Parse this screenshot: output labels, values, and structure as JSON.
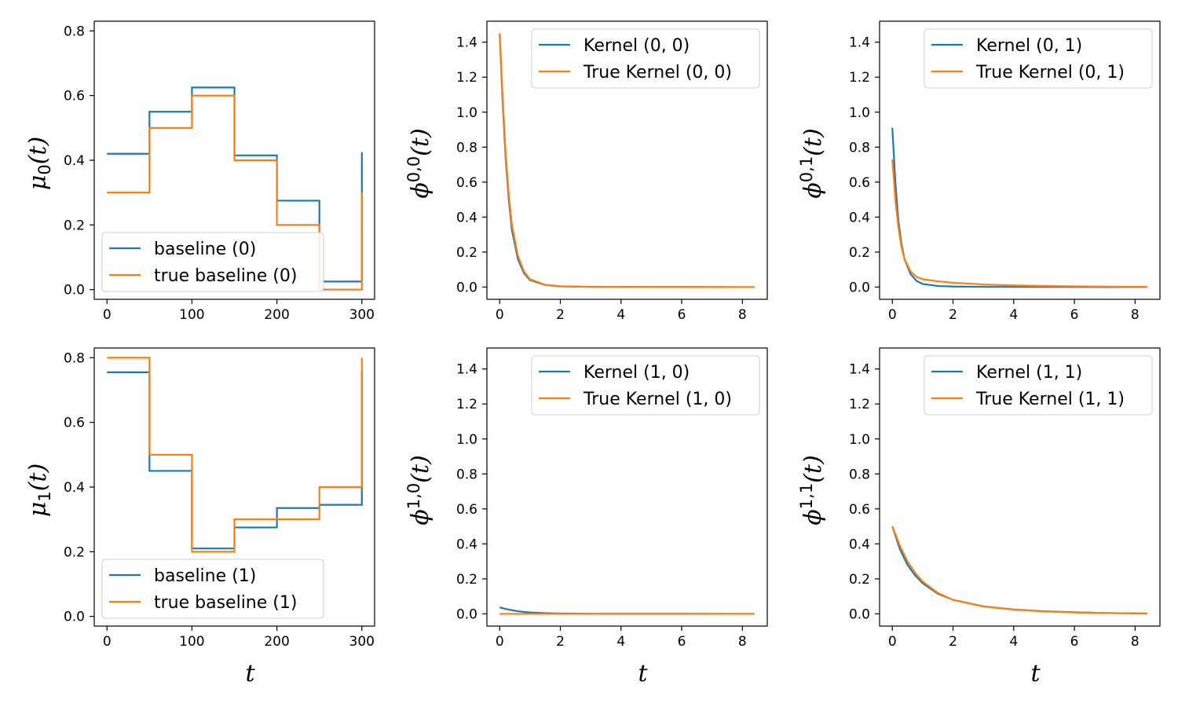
{
  "colors": {
    "estimate": "#1f77b4",
    "truth": "#ff7f0e"
  },
  "chart_data": [
    {
      "type": "line",
      "id": "mu0",
      "ylabel": "μ0(t)",
      "xlabel": "",
      "xlim": [
        -15,
        315
      ],
      "ylim": [
        -0.03,
        0.83
      ],
      "xticks": [
        0,
        100,
        200,
        300
      ],
      "xtick_labels": [
        "0",
        "100",
        "200",
        "300"
      ],
      "yticks": [
        0.0,
        0.2,
        0.4,
        0.6,
        0.8
      ],
      "ytick_labels": [
        "0.0",
        "0.2",
        "0.4",
        "0.6",
        "0.8"
      ],
      "legend_position": "lower-left",
      "series": [
        {
          "name": "baseline (0)",
          "color": "estimate",
          "step": true,
          "x": [
            0,
            50,
            100,
            150,
            200,
            250,
            300
          ],
          "y": [
            0.42,
            0.55,
            0.625,
            0.415,
            0.275,
            0.025,
            0.425
          ]
        },
        {
          "name": "true baseline (0)",
          "color": "truth",
          "step": true,
          "x": [
            0,
            50,
            100,
            150,
            200,
            250,
            300
          ],
          "y": [
            0.3,
            0.5,
            0.6,
            0.4,
            0.2,
            0.0,
            0.3
          ]
        }
      ]
    },
    {
      "type": "line",
      "id": "phi00",
      "ylabel": "ϕ0,0(t)",
      "xlabel": "",
      "xlim": [
        -0.42,
        8.82
      ],
      "ylim": [
        -0.07,
        1.52
      ],
      "xticks": [
        0,
        2,
        4,
        6,
        8
      ],
      "xtick_labels": [
        "0",
        "2",
        "4",
        "6",
        "8"
      ],
      "yticks": [
        0.0,
        0.2,
        0.4,
        0.6,
        0.8,
        1.0,
        1.2,
        1.4
      ],
      "ytick_labels": [
        "0.0",
        "0.2",
        "0.4",
        "0.6",
        "0.8",
        "1.0",
        "1.2",
        "1.4"
      ],
      "legend_position": "upper-right",
      "series": [
        {
          "name": "Kernel (0, 0)",
          "color": "estimate",
          "x": [
            0,
            0.1,
            0.2,
            0.3,
            0.4,
            0.6,
            0.8,
            1.0,
            1.5,
            2.0,
            3.0,
            8.4
          ],
          "y": [
            1.45,
            1.05,
            0.73,
            0.5,
            0.33,
            0.16,
            0.08,
            0.04,
            0.012,
            0.004,
            0.001,
            0.0
          ]
        },
        {
          "name": "True Kernel (0, 0)",
          "color": "truth",
          "x": [
            0,
            0.1,
            0.2,
            0.3,
            0.4,
            0.6,
            0.8,
            1.0,
            1.5,
            2.0,
            3.0,
            8.4
          ],
          "y": [
            1.45,
            1.08,
            0.76,
            0.53,
            0.36,
            0.18,
            0.09,
            0.045,
            0.013,
            0.005,
            0.001,
            0.0
          ]
        }
      ]
    },
    {
      "type": "line",
      "id": "phi01",
      "ylabel": "ϕ0,1(t)",
      "xlabel": "",
      "xlim": [
        -0.42,
        8.82
      ],
      "ylim": [
        -0.07,
        1.52
      ],
      "xticks": [
        0,
        2,
        4,
        6,
        8
      ],
      "xtick_labels": [
        "0",
        "2",
        "4",
        "6",
        "8"
      ],
      "yticks": [
        0.0,
        0.2,
        0.4,
        0.6,
        0.8,
        1.0,
        1.2,
        1.4
      ],
      "ytick_labels": [
        "0.0",
        "0.2",
        "0.4",
        "0.6",
        "0.8",
        "1.0",
        "1.2",
        "1.4"
      ],
      "legend_position": "upper-right",
      "series": [
        {
          "name": "Kernel (0, 1)",
          "color": "estimate",
          "x": [
            0,
            0.1,
            0.2,
            0.3,
            0.4,
            0.6,
            0.8,
            1.0,
            1.5,
            2.0,
            3.0,
            8.4
          ],
          "y": [
            0.91,
            0.6,
            0.38,
            0.25,
            0.16,
            0.075,
            0.035,
            0.018,
            0.006,
            0.003,
            0.001,
            0.0
          ]
        },
        {
          "name": "True Kernel (0, 1)",
          "color": "truth",
          "x": [
            0,
            0.1,
            0.2,
            0.3,
            0.4,
            0.6,
            0.8,
            1.0,
            1.5,
            2.0,
            3.0,
            4.0,
            6.0,
            8.4
          ],
          "y": [
            0.73,
            0.5,
            0.34,
            0.23,
            0.16,
            0.09,
            0.058,
            0.045,
            0.033,
            0.025,
            0.015,
            0.009,
            0.004,
            0.001
          ]
        }
      ]
    },
    {
      "type": "line",
      "id": "mu1",
      "ylabel": "μ1(t)",
      "xlabel": "t",
      "xlim": [
        -15,
        315
      ],
      "ylim": [
        -0.03,
        0.83
      ],
      "xticks": [
        0,
        100,
        200,
        300
      ],
      "xtick_labels": [
        "0",
        "100",
        "200",
        "300"
      ],
      "yticks": [
        0.0,
        0.2,
        0.4,
        0.6,
        0.8
      ],
      "ytick_labels": [
        "0.0",
        "0.2",
        "0.4",
        "0.6",
        "0.8"
      ],
      "legend_position": "lower-left",
      "series": [
        {
          "name": "baseline (1)",
          "color": "estimate",
          "step": true,
          "x": [
            0,
            50,
            100,
            150,
            200,
            250,
            300
          ],
          "y": [
            0.755,
            0.45,
            0.21,
            0.275,
            0.335,
            0.345,
            0.76
          ]
        },
        {
          "name": "true baseline (1)",
          "color": "truth",
          "step": true,
          "x": [
            0,
            50,
            100,
            150,
            200,
            250,
            300
          ],
          "y": [
            0.8,
            0.5,
            0.2,
            0.3,
            0.3,
            0.4,
            0.8
          ]
        }
      ]
    },
    {
      "type": "line",
      "id": "phi10",
      "ylabel": "ϕ1,0(t)",
      "xlabel": "t",
      "xlim": [
        -0.42,
        8.82
      ],
      "ylim": [
        -0.07,
        1.52
      ],
      "xticks": [
        0,
        2,
        4,
        6,
        8
      ],
      "xtick_labels": [
        "0",
        "2",
        "4",
        "6",
        "8"
      ],
      "yticks": [
        0.0,
        0.2,
        0.4,
        0.6,
        0.8,
        1.0,
        1.2,
        1.4
      ],
      "ytick_labels": [
        "0.0",
        "0.2",
        "0.4",
        "0.6",
        "0.8",
        "1.0",
        "1.2",
        "1.4"
      ],
      "legend_position": "upper-right",
      "series": [
        {
          "name": "Kernel (1, 0)",
          "color": "estimate",
          "x": [
            0,
            0.2,
            0.4,
            0.6,
            0.8,
            1.0,
            1.5,
            2.0,
            3.0,
            8.4
          ],
          "y": [
            0.037,
            0.028,
            0.021,
            0.015,
            0.011,
            0.008,
            0.004,
            0.002,
            0.0005,
            0.0
          ]
        },
        {
          "name": "True Kernel (1, 0)",
          "color": "truth",
          "x": [
            0,
            8.4
          ],
          "y": [
            0.0,
            0.0
          ]
        }
      ]
    },
    {
      "type": "line",
      "id": "phi11",
      "ylabel": "ϕ1,1(t)",
      "xlabel": "t",
      "xlim": [
        -0.42,
        8.82
      ],
      "ylim": [
        -0.07,
        1.52
      ],
      "xticks": [
        0,
        2,
        4,
        6,
        8
      ],
      "xtick_labels": [
        "0",
        "2",
        "4",
        "6",
        "8"
      ],
      "yticks": [
        0.0,
        0.2,
        0.4,
        0.6,
        0.8,
        1.0,
        1.2,
        1.4
      ],
      "ytick_labels": [
        "0.0",
        "0.2",
        "0.4",
        "0.6",
        "0.8",
        "1.0",
        "1.2",
        "1.4"
      ],
      "legend_position": "upper-right",
      "series": [
        {
          "name": "Kernel (1, 1)",
          "color": "estimate",
          "x": [
            0,
            0.25,
            0.5,
            0.75,
            1.0,
            1.5,
            2.0,
            3.0,
            4.0,
            5.0,
            6.0,
            7.0,
            8.4
          ],
          "y": [
            0.5,
            0.37,
            0.28,
            0.22,
            0.175,
            0.115,
            0.08,
            0.043,
            0.025,
            0.015,
            0.009,
            0.005,
            0.002
          ]
        },
        {
          "name": "True Kernel (1, 1)",
          "color": "truth",
          "x": [
            0,
            0.25,
            0.5,
            0.75,
            1.0,
            1.5,
            2.0,
            3.0,
            4.0,
            5.0,
            6.0,
            7.0,
            8.4
          ],
          "y": [
            0.5,
            0.39,
            0.3,
            0.235,
            0.185,
            0.12,
            0.08,
            0.042,
            0.024,
            0.014,
            0.008,
            0.005,
            0.002
          ]
        }
      ]
    }
  ]
}
